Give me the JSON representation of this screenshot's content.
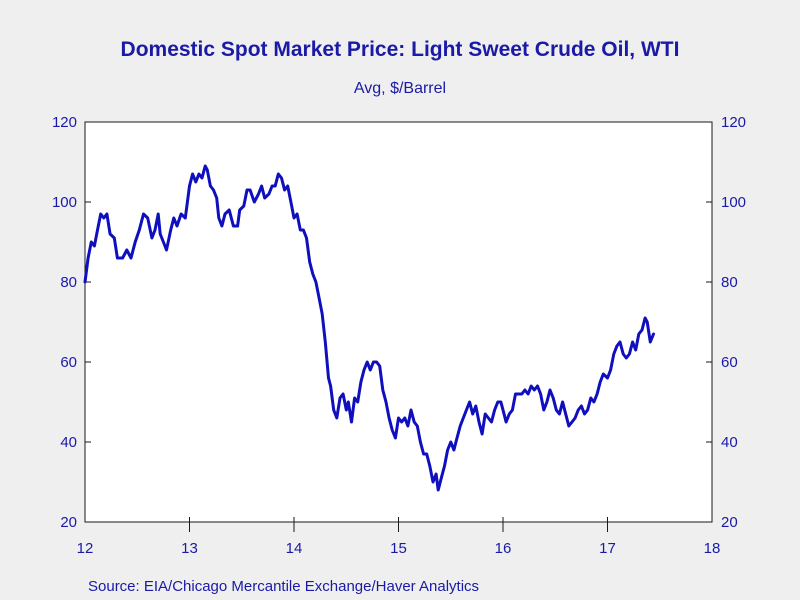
{
  "chart_data": {
    "type": "line",
    "title": "Domestic Spot Market Price: Light Sweet Crude Oil, WTI",
    "subtitle": "Avg, $/Barrel",
    "source": "Source:  EIA/Chicago Mercantile Exchange/Haver Analytics",
    "x_tick_labels": [
      "12",
      "13",
      "14",
      "15",
      "16",
      "17",
      "18"
    ],
    "y_ticks": [
      20,
      40,
      60,
      80,
      100,
      120
    ],
    "ylim": [
      20,
      120
    ],
    "x_range": [
      2012.0,
      2018.0
    ],
    "line_color": "#0f0fbe",
    "series": [
      {
        "values": [
          [
            2012.0,
            80
          ],
          [
            2012.03,
            86
          ],
          [
            2012.06,
            90
          ],
          [
            2012.09,
            89
          ],
          [
            2012.12,
            93
          ],
          [
            2012.15,
            97
          ],
          [
            2012.18,
            96
          ],
          [
            2012.21,
            97
          ],
          [
            2012.24,
            92
          ],
          [
            2012.28,
            91
          ],
          [
            2012.31,
            86
          ],
          [
            2012.36,
            86
          ],
          [
            2012.4,
            88
          ],
          [
            2012.44,
            86
          ],
          [
            2012.48,
            90
          ],
          [
            2012.52,
            93
          ],
          [
            2012.56,
            97
          ],
          [
            2012.6,
            96
          ],
          [
            2012.64,
            91
          ],
          [
            2012.67,
            93
          ],
          [
            2012.7,
            97
          ],
          [
            2012.72,
            92
          ],
          [
            2012.75,
            90
          ],
          [
            2012.78,
            88
          ],
          [
            2012.82,
            93
          ],
          [
            2012.85,
            96
          ],
          [
            2012.88,
            94
          ],
          [
            2012.92,
            97
          ],
          [
            2012.96,
            96
          ],
          [
            2013.0,
            104
          ],
          [
            2013.03,
            107
          ],
          [
            2013.06,
            105
          ],
          [
            2013.09,
            107
          ],
          [
            2013.12,
            106
          ],
          [
            2013.15,
            109
          ],
          [
            2013.17,
            108
          ],
          [
            2013.2,
            104
          ],
          [
            2013.23,
            103
          ],
          [
            2013.26,
            101
          ],
          [
            2013.28,
            96
          ],
          [
            2013.31,
            94
          ],
          [
            2013.34,
            97
          ],
          [
            2013.38,
            98
          ],
          [
            2013.42,
            94
          ],
          [
            2013.46,
            94
          ],
          [
            2013.48,
            98
          ],
          [
            2013.52,
            99
          ],
          [
            2013.55,
            103
          ],
          [
            2013.58,
            103
          ],
          [
            2013.62,
            100
          ],
          [
            2013.66,
            102
          ],
          [
            2013.69,
            104
          ],
          [
            2013.72,
            101
          ],
          [
            2013.76,
            102
          ],
          [
            2013.79,
            104
          ],
          [
            2013.82,
            104
          ],
          [
            2013.85,
            107
          ],
          [
            2013.88,
            106
          ],
          [
            2013.91,
            103
          ],
          [
            2013.94,
            104
          ],
          [
            2013.97,
            100
          ],
          [
            2014.0,
            96
          ],
          [
            2014.03,
            97
          ],
          [
            2014.06,
            93
          ],
          [
            2014.09,
            93
          ],
          [
            2014.12,
            91
          ],
          [
            2014.15,
            85
          ],
          [
            2014.18,
            82
          ],
          [
            2014.21,
            80
          ],
          [
            2014.24,
            76
          ],
          [
            2014.27,
            72
          ],
          [
            2014.3,
            65
          ],
          [
            2014.33,
            56
          ],
          [
            2014.35,
            54
          ],
          [
            2014.38,
            48
          ],
          [
            2014.41,
            46
          ],
          [
            2014.44,
            51
          ],
          [
            2014.47,
            52
          ],
          [
            2014.5,
            48
          ],
          [
            2014.52,
            50
          ],
          [
            2014.55,
            45
          ],
          [
            2014.58,
            51
          ],
          [
            2014.61,
            50
          ],
          [
            2014.64,
            55
          ],
          [
            2014.67,
            58
          ],
          [
            2014.7,
            60
          ],
          [
            2014.73,
            58
          ],
          [
            2014.76,
            60
          ],
          [
            2014.79,
            60
          ],
          [
            2014.82,
            59
          ],
          [
            2014.85,
            53
          ],
          [
            2014.88,
            50
          ],
          [
            2014.91,
            46
          ],
          [
            2014.94,
            43
          ],
          [
            2014.97,
            41
          ],
          [
            2015.0,
            46
          ],
          [
            2015.03,
            45
          ],
          [
            2015.06,
            46
          ],
          [
            2015.09,
            44
          ],
          [
            2015.12,
            48
          ],
          [
            2015.15,
            45
          ],
          [
            2015.18,
            44
          ],
          [
            2015.21,
            40
          ],
          [
            2015.24,
            37
          ],
          [
            2015.27,
            37
          ],
          [
            2015.3,
            34
          ],
          [
            2015.33,
            30
          ],
          [
            2015.36,
            32
          ],
          [
            2015.38,
            28
          ],
          [
            2015.41,
            31
          ],
          [
            2015.44,
            34
          ],
          [
            2015.47,
            38
          ],
          [
            2015.5,
            40
          ],
          [
            2015.53,
            38
          ],
          [
            2015.56,
            41
          ],
          [
            2015.59,
            44
          ],
          [
            2015.62,
            46
          ],
          [
            2015.65,
            48
          ],
          [
            2015.68,
            50
          ],
          [
            2015.71,
            47
          ],
          [
            2015.74,
            49
          ],
          [
            2015.77,
            45
          ],
          [
            2015.8,
            42
          ],
          [
            2015.83,
            47
          ],
          [
            2015.86,
            46
          ],
          [
            2015.89,
            45
          ],
          [
            2015.92,
            48
          ],
          [
            2015.95,
            50
          ],
          [
            2015.98,
            50
          ],
          [
            2016.0,
            48
          ],
          [
            2016.03,
            45
          ],
          [
            2016.06,
            47
          ],
          [
            2016.09,
            48
          ],
          [
            2016.12,
            52
          ],
          [
            2016.15,
            52
          ],
          [
            2016.18,
            52
          ],
          [
            2016.21,
            53
          ],
          [
            2016.24,
            52
          ],
          [
            2016.27,
            54
          ],
          [
            2016.3,
            53
          ],
          [
            2016.33,
            54
          ],
          [
            2016.36,
            52
          ],
          [
            2016.39,
            48
          ],
          [
            2016.42,
            50
          ],
          [
            2016.45,
            53
          ],
          [
            2016.48,
            51
          ],
          [
            2016.51,
            48
          ],
          [
            2016.54,
            47
          ],
          [
            2016.57,
            50
          ],
          [
            2016.6,
            47
          ],
          [
            2016.63,
            44
          ],
          [
            2016.66,
            45
          ],
          [
            2016.69,
            46
          ],
          [
            2016.72,
            48
          ],
          [
            2016.75,
            49
          ],
          [
            2016.78,
            47
          ],
          [
            2016.81,
            48
          ],
          [
            2016.84,
            51
          ],
          [
            2016.87,
            50
          ],
          [
            2016.9,
            52
          ],
          [
            2016.93,
            55
          ],
          [
            2016.96,
            57
          ],
          [
            2017.0,
            56
          ],
          [
            2017.03,
            58
          ],
          [
            2017.06,
            62
          ],
          [
            2017.09,
            64
          ],
          [
            2017.12,
            65
          ],
          [
            2017.15,
            62
          ],
          [
            2017.18,
            61
          ],
          [
            2017.21,
            62
          ],
          [
            2017.24,
            65
          ],
          [
            2017.27,
            63
          ],
          [
            2017.3,
            67
          ],
          [
            2017.33,
            68
          ],
          [
            2017.36,
            71
          ],
          [
            2017.38,
            70
          ],
          [
            2017.41,
            65
          ],
          [
            2017.44,
            67
          ]
        ]
      }
    ]
  }
}
